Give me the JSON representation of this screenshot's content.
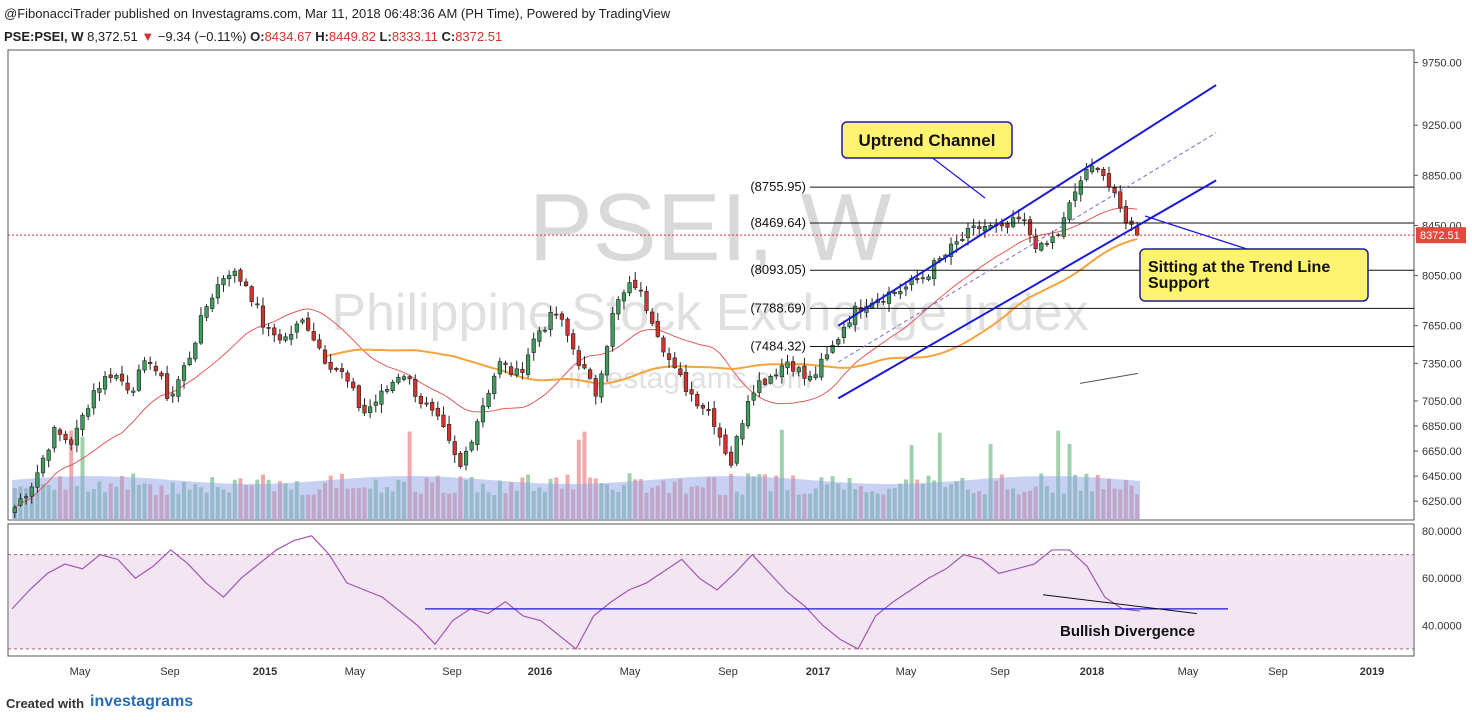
{
  "header": {
    "attribution": "@FibonacciTrader published on Investagrams.com, Mar 11, 2018 06:48:36 AM (PH Time), Powered by TradingView"
  },
  "ohlc": {
    "symbol": "PSE:PSEI, W",
    "last": "8,372.51",
    "change": "−9.34 (−0.11%)",
    "o_label": "O:",
    "o": "8434.67",
    "h_label": "H:",
    "h": "8449.82",
    "l_label": "L:",
    "l": "8333.11",
    "c_label": "C:",
    "c": "8372.51"
  },
  "colors": {
    "up": "#3e9c5c",
    "down": "#d0342c",
    "ma_short": "#e35b5b",
    "ma_long": "#f5a33a",
    "channel": "#1a1ad6",
    "callout_fill": "#fff370",
    "rsi_line": "#a653b9",
    "rsi_band": "#f3e6f3"
  },
  "chart_data": {
    "type": "candlestick",
    "watermark": "PSEI, W",
    "watermark_sub": "Philippine Stock Exchange Index",
    "watermark_logo": "investagrams.com",
    "ylim": [
      6100,
      9850
    ],
    "y_ticks": [
      "9750.00",
      "9250.00",
      "8850.00",
      "8450.00",
      "8050.00",
      "7650.00",
      "7350.00",
      "7050.00",
      "6850.00",
      "6650.00",
      "6450.00",
      "6250.00"
    ],
    "last_price_label": "8372.51",
    "x_labels": [
      "May",
      "Sep",
      "2015",
      "May",
      "Sep",
      "2016",
      "May",
      "Sep",
      "2017",
      "May",
      "Sep",
      "2018",
      "May",
      "Sep",
      "2019"
    ],
    "price_path": [
      6200,
      6420,
      6800,
      6720,
      7120,
      7280,
      7150,
      7390,
      7060,
      7400,
      7850,
      8100,
      7980,
      7600,
      7550,
      7700,
      7400,
      7250,
      6950,
      7100,
      7300,
      7050,
      6850,
      6500,
      6950,
      7350,
      7250,
      7600,
      7750,
      7420,
      7100,
      7800,
      8000,
      7700,
      7300,
      7100,
      6950,
      6550,
      7150,
      7250,
      7380,
      7200,
      7400,
      7700,
      7850,
      7900,
      7950,
      8050,
      8200,
      8350,
      8450,
      8400,
      8500,
      8250,
      8400,
      8800,
      8950,
      8600,
      8372
    ],
    "fib_levels": [
      {
        "label": "(8755.95)",
        "value": 8755.95
      },
      {
        "label": "(8469.64)",
        "value": 8469.64
      },
      {
        "label": "(8093.05)",
        "value": 8093.05
      },
      {
        "label": "(7788.69)",
        "value": 7788.69
      },
      {
        "label": "(7484.32)",
        "value": 7484.32
      }
    ],
    "annotations": {
      "uptrend_channel": "Uptrend Channel",
      "support_line1": "Sitting at the Trend Line",
      "support_line2": "Support",
      "divergence": "Bullish Divergence"
    },
    "rsi": {
      "y_ticks": [
        "80.0000",
        "60.0000",
        "40.0000"
      ],
      "ylim": [
        27,
        83
      ],
      "band": [
        70,
        30
      ],
      "support_level": 47,
      "values": [
        47,
        55,
        62,
        66,
        64,
        70,
        68,
        60,
        65,
        72,
        66,
        58,
        52,
        60,
        66,
        72,
        76,
        78,
        70,
        58,
        55,
        52,
        46,
        40,
        32,
        42,
        47,
        45,
        50,
        44,
        42,
        36,
        30,
        44,
        50,
        55,
        58,
        63,
        68,
        60,
        55,
        62,
        70,
        62,
        54,
        48,
        40,
        34,
        30,
        44,
        50,
        55,
        60,
        64,
        70,
        68,
        62,
        64,
        66,
        72,
        72,
        65,
        52,
        47,
        46
      ]
    }
  },
  "footer": {
    "created": "Created with",
    "brand": "investagrams"
  }
}
